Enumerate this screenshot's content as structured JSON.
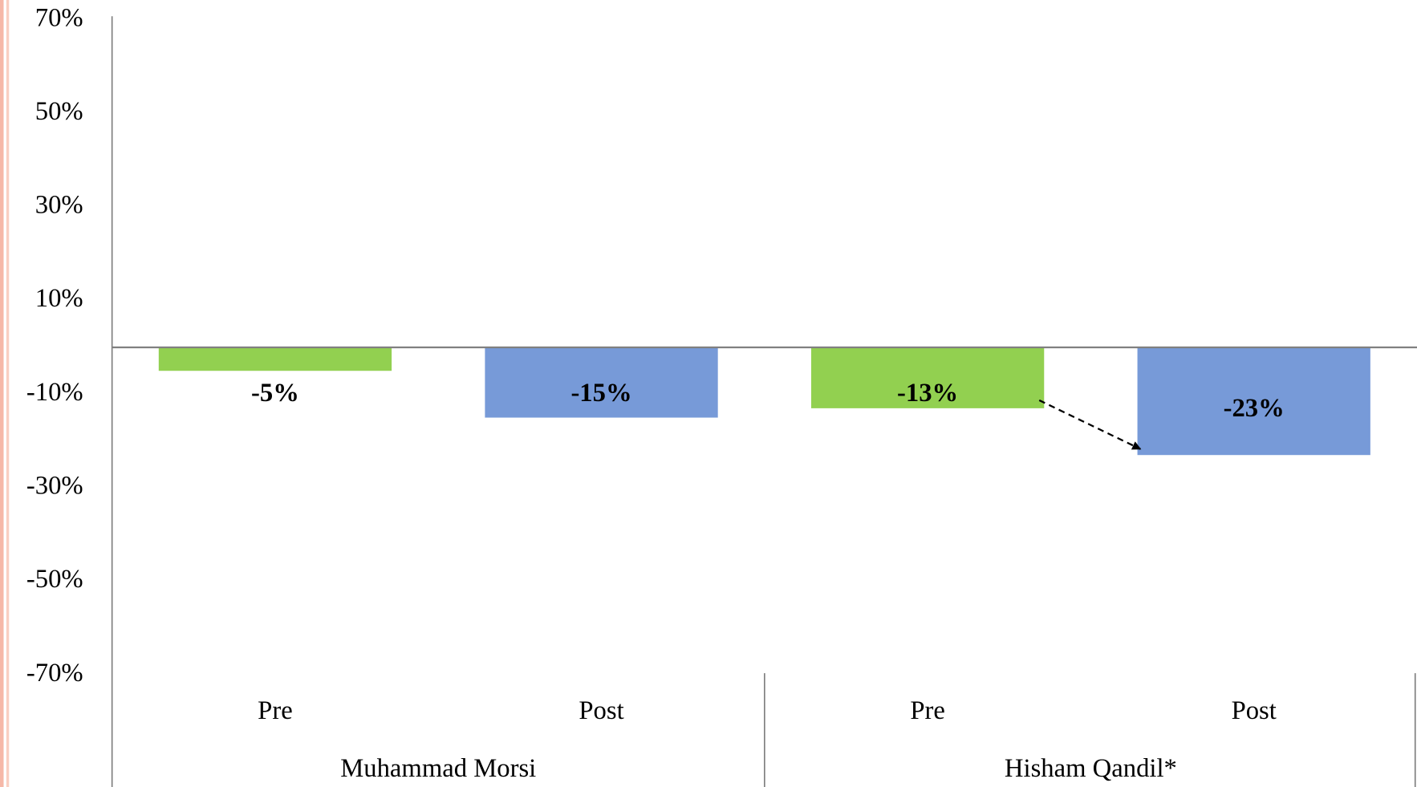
{
  "chart_data": {
    "type": "grouped_bar",
    "groups": [
      {
        "name": "Muhammad Morsi",
        "categories": [
          "Pre",
          "Post"
        ],
        "values": [
          -5,
          -15
        ],
        "value_labels": [
          "-5%",
          "-15%"
        ]
      },
      {
        "name": "Hisham Qandil*",
        "categories": [
          "Pre",
          "Post"
        ],
        "values": [
          -13,
          -23
        ],
        "value_labels": [
          "-13%",
          "-23%"
        ]
      }
    ],
    "colors": [
      "#92d050",
      "#779ad8"
    ],
    "ylim": [
      -70,
      70
    ],
    "yticks": [
      {
        "value": 70,
        "label": "70%"
      },
      {
        "value": 50,
        "label": "50%"
      },
      {
        "value": 30,
        "label": "30%"
      },
      {
        "value": 10,
        "label": "10%"
      },
      {
        "value": -10,
        "label": "-10%"
      },
      {
        "value": -30,
        "label": "-30%"
      },
      {
        "value": -50,
        "label": "-50%"
      },
      {
        "value": -70,
        "label": "-70%"
      }
    ]
  }
}
